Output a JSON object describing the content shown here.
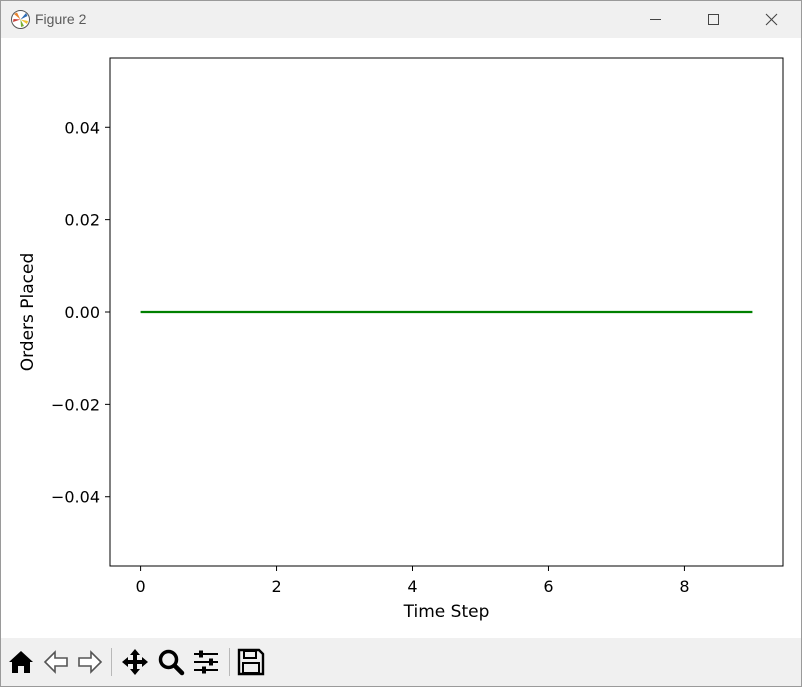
{
  "window": {
    "title": "Figure 2"
  },
  "toolbar": {
    "buttons": [
      {
        "name": "home-button",
        "icon": "home-icon"
      },
      {
        "name": "back-button",
        "icon": "back-arrow-icon"
      },
      {
        "name": "forward-button",
        "icon": "forward-arrow-icon"
      },
      {
        "name": "pan-button",
        "icon": "move-icon"
      },
      {
        "name": "zoom-button",
        "icon": "magnifier-icon"
      },
      {
        "name": "configure-subplots-button",
        "icon": "sliders-icon"
      },
      {
        "name": "save-button",
        "icon": "floppy-disk-icon"
      }
    ]
  },
  "colors": {
    "line": "#008000",
    "axes": "#000000",
    "titlebar": "#f0f0f0"
  },
  "chart_data": {
    "type": "line",
    "title": "",
    "xlabel": "Time Step",
    "ylabel": "Orders Placed",
    "x": [
      0,
      1,
      2,
      3,
      4,
      5,
      6,
      7,
      8,
      9
    ],
    "series": [
      {
        "values": [
          0,
          0,
          0,
          0,
          0,
          0,
          0,
          0,
          0,
          0
        ],
        "color": "#008000"
      }
    ],
    "xlim": [
      -0.45,
      9.45
    ],
    "ylim": [
      -0.055,
      0.055
    ],
    "xticks": [
      0,
      2,
      4,
      6,
      8
    ],
    "xtick_labels": [
      "0",
      "2",
      "4",
      "6",
      "8"
    ],
    "yticks": [
      0.04,
      0.02,
      0.0,
      -0.02,
      -0.04
    ],
    "ytick_labels": [
      "0.04",
      "0.02",
      "0.00",
      "−0.02",
      "−0.04"
    ],
    "grid": false,
    "legend": "none"
  }
}
